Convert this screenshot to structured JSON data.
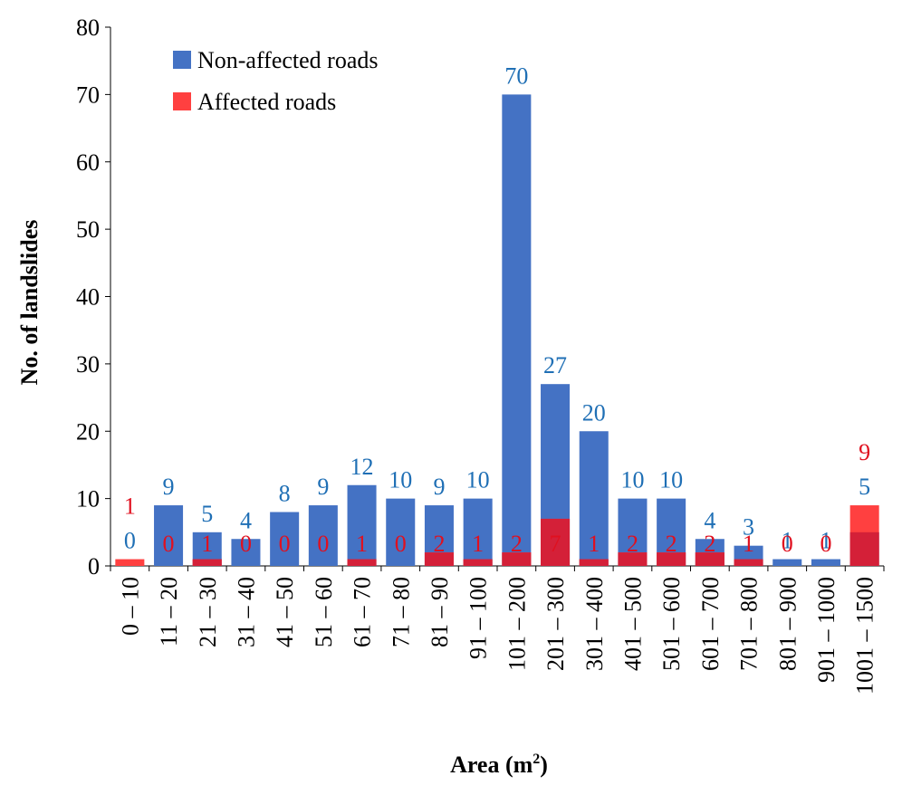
{
  "chart_data": {
    "type": "bar",
    "xlabel": "Area (m",
    "xlabel_sup": "2",
    "xlabel_close": ")",
    "ylabel": "No. of landslides",
    "ylim": [
      0,
      80
    ],
    "yticks": [
      "0",
      "10",
      "20",
      "30",
      "40",
      "50",
      "60",
      "70",
      "80"
    ],
    "grid": false,
    "legend_position": "top-left",
    "categories": [
      "0 – 10",
      "11 – 20",
      "21 – 30",
      "31 – 40",
      "41 – 50",
      "51 – 60",
      "61 – 70",
      "71 – 80",
      "81 – 90",
      "91 – 100",
      "101 – 200",
      "201 – 300",
      "301 – 400",
      "401 – 500",
      "501 – 600",
      "601 – 700",
      "701 – 800",
      "801 – 900",
      "901 – 1000",
      "1001 – 1500"
    ],
    "series": [
      {
        "name": "Non-affected roads",
        "color": "#4472c4",
        "label_color": "#1f6fb5",
        "values": [
          0,
          9,
          5,
          4,
          8,
          9,
          12,
          10,
          9,
          10,
          70,
          27,
          20,
          10,
          10,
          4,
          3,
          1,
          1,
          5
        ]
      },
      {
        "name": "Affected roads",
        "color": "#ff4040",
        "label_color": "#e0101f",
        "values": [
          1,
          0,
          1,
          0,
          0,
          0,
          1,
          0,
          2,
          1,
          2,
          7,
          1,
          2,
          2,
          2,
          1,
          0,
          0,
          9
        ]
      }
    ],
    "overlap_color": "#d42038",
    "value_labels": {
      "Non-affected roads": [
        "0",
        "9",
        "5",
        "4",
        "8",
        "9",
        "12",
        "10",
        "9",
        "10",
        "70",
        "27",
        "20",
        "10",
        "10",
        "4",
        "3",
        "1",
        "1",
        "5"
      ],
      "Affected roads": [
        "1",
        "0",
        "1",
        "0",
        "0",
        "0",
        "1",
        "0",
        "2",
        "1",
        "2",
        "7",
        "1",
        "2",
        "2",
        "2",
        "1",
        "0",
        "0",
        "9"
      ]
    }
  }
}
